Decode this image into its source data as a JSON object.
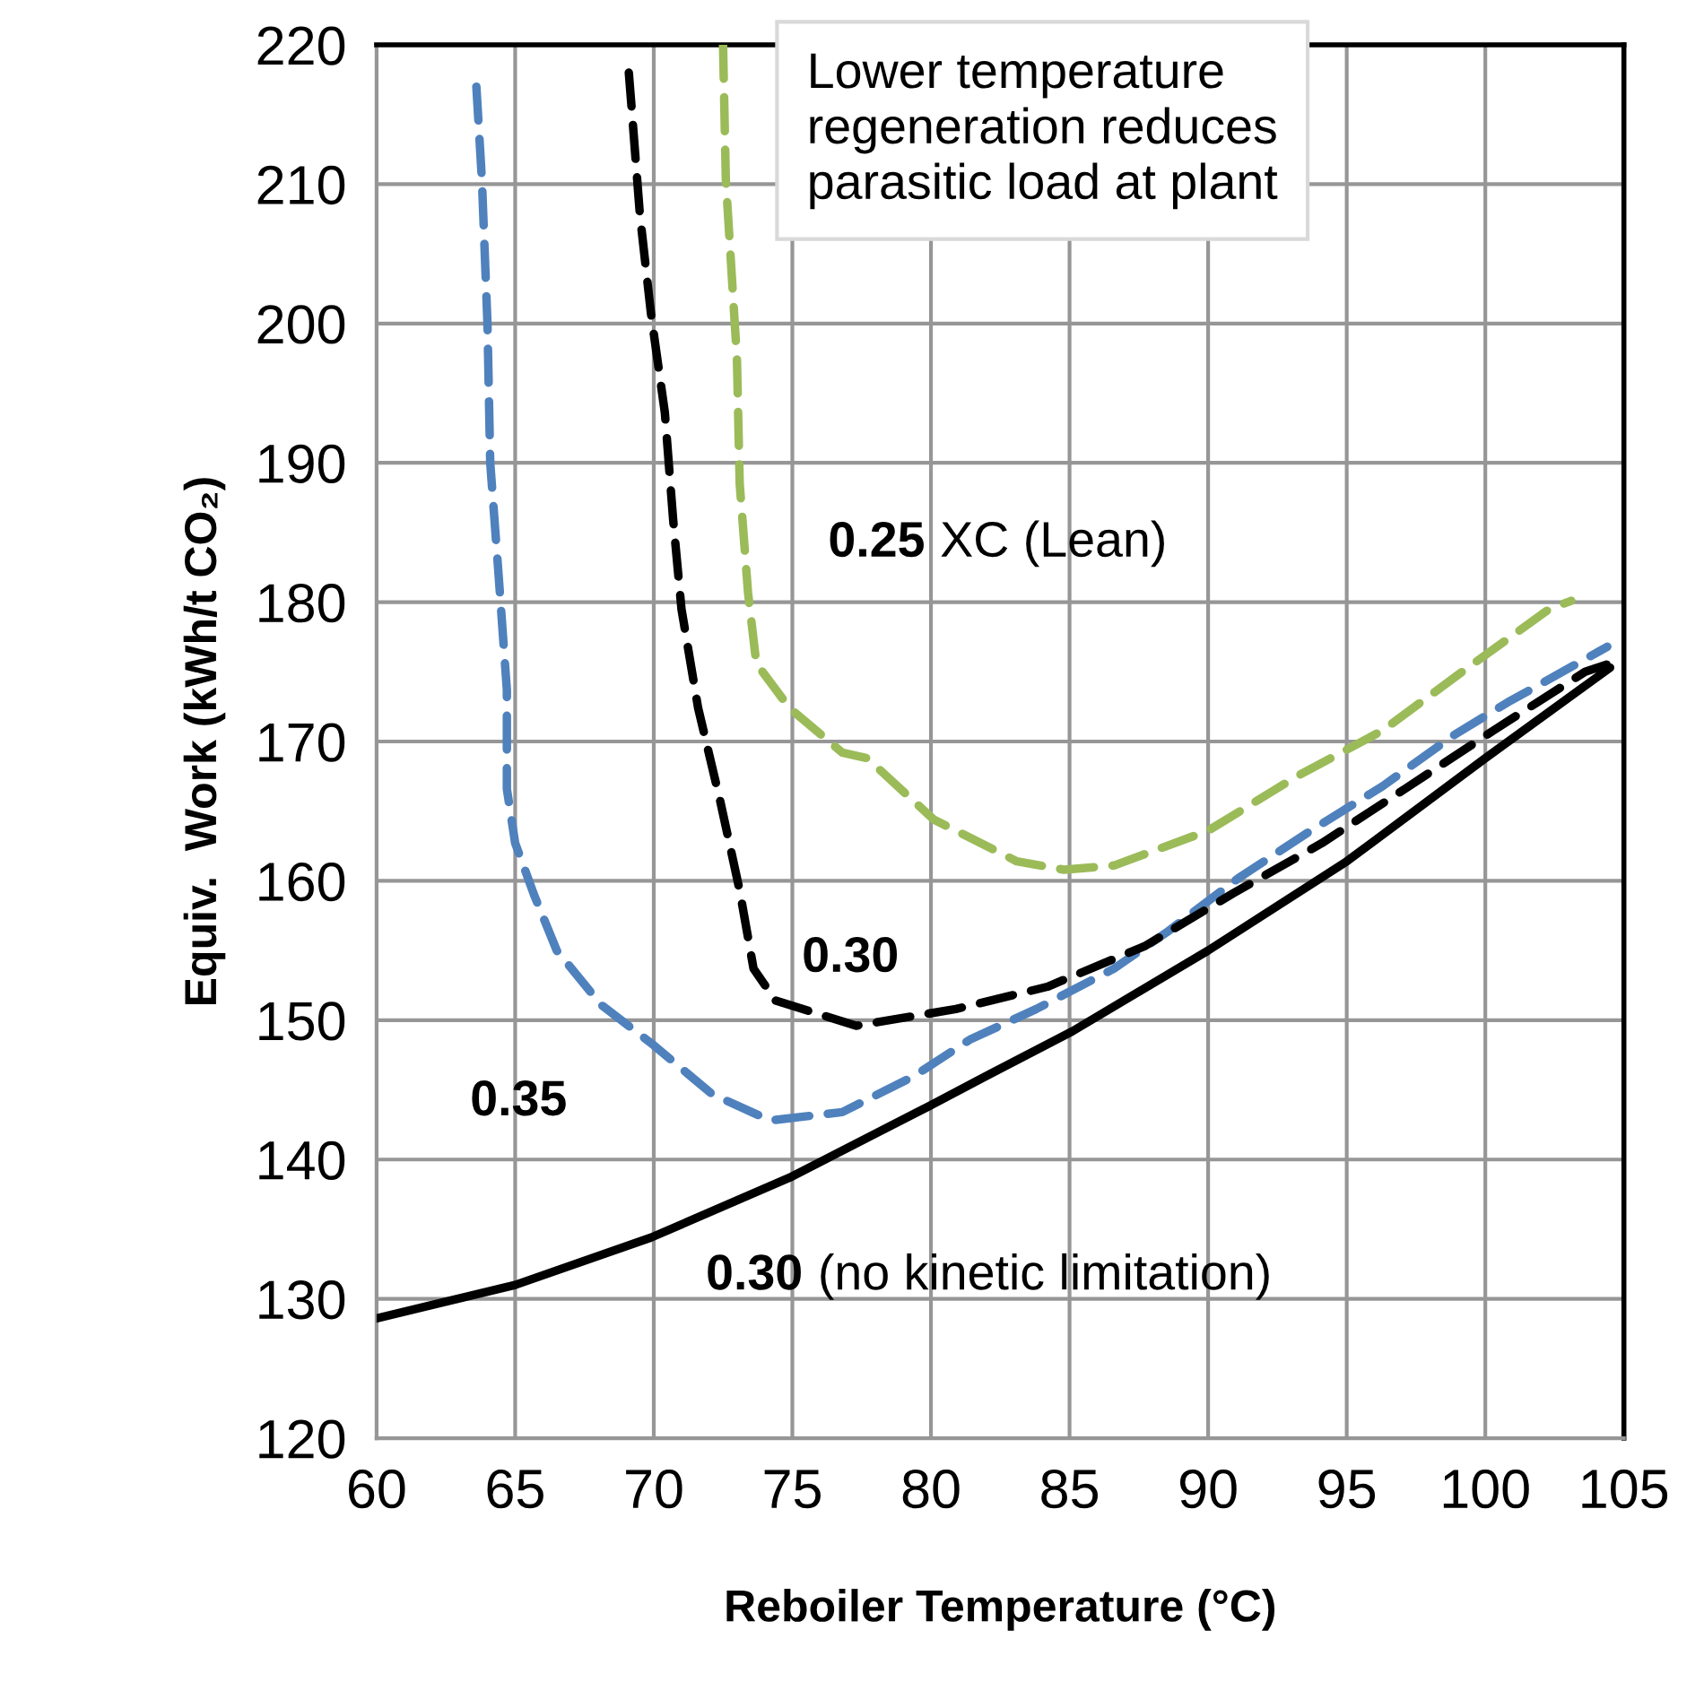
{
  "chart_data": {
    "type": "line",
    "xlabel": "Reboiler Temperature (°C)",
    "ylabel": "Equiv.  Work (kWh/t CO₂)",
    "xlim": [
      60,
      105
    ],
    "xticks": [
      60,
      65,
      70,
      75,
      80,
      85,
      90,
      95,
      100,
      105
    ],
    "ylim": [
      120,
      220
    ],
    "yticks": [
      120,
      130,
      140,
      150,
      160,
      170,
      180,
      190,
      200,
      210,
      220
    ],
    "grid": true,
    "marker": "none",
    "series": [
      {
        "name": "0.35",
        "color": "#4f81bd",
        "line_style": "dashed",
        "x": [
          63.6,
          63.8,
          64.0,
          64.1,
          64.4,
          64.7,
          64.7,
          65.0,
          65.7,
          66.5,
          68.1,
          70.0,
          72.1,
          74.2,
          76.8,
          79.4,
          81.4,
          83.8,
          86.6,
          88.5,
          91.1,
          93.7,
          96.3,
          98.9,
          100.8,
          104.4
        ],
        "values": [
          217,
          210.3,
          200,
          190,
          182,
          173.7,
          166.6,
          162.7,
          158.9,
          155,
          151.1,
          148.2,
          144.7,
          142.8,
          143.4,
          146,
          148.6,
          150.8,
          153.7,
          156.3,
          160.2,
          163.6,
          166.8,
          170.5,
          172.8,
          176.8
        ]
      },
      {
        "name": "0.30",
        "color": "#000000",
        "line_style": "dashed",
        "x": [
          69.1,
          69.2,
          69.5,
          69.9,
          70.4,
          70.7,
          71.0,
          71.6,
          72.4,
          73.1,
          73.6,
          74.4,
          77.3,
          80.9,
          84.2,
          87.7,
          90.9,
          94.1,
          97.1,
          100.3,
          103.6,
          104.5
        ],
        "values": [
          218,
          215.5,
          207.8,
          200.7,
          193.6,
          185.9,
          179.5,
          172.4,
          165.7,
          159.3,
          153.7,
          151.4,
          149.6,
          150.8,
          152.4,
          155.3,
          159.1,
          162.7,
          166.6,
          170.8,
          175.0,
          175.6
        ]
      },
      {
        "name": "0.25 XC (Lean)",
        "color": "#9bbb59",
        "line_style": "dashed",
        "x": [
          72.5,
          72.6,
          72.8,
          73.0,
          73.1,
          73.4,
          73.7,
          74.9,
          76.8,
          77.7,
          80.1,
          83.1,
          84.8,
          86.6,
          90.0,
          93.2,
          96.3,
          99.3,
          102.3,
          103.1
        ],
        "values": [
          220,
          210.3,
          203.9,
          197.5,
          188.5,
          180.7,
          175.6,
          172.4,
          169.2,
          168.8,
          164.4,
          161.4,
          160.8,
          161.1,
          163.6,
          167.5,
          170.8,
          175.2,
          179.5,
          180.1
        ]
      },
      {
        "name": "0.30 (no kinetic limitation)",
        "color": "#000000",
        "line_style": "solid",
        "x": [
          60,
          65.0,
          69.9,
          74.9,
          79.9,
          82.0,
          85.1,
          90.0,
          95.0,
          100.0,
          104.5
        ],
        "values": [
          128.6,
          131.0,
          134.4,
          138.7,
          143.8,
          146.0,
          149.2,
          155.0,
          161.4,
          168.8,
          175.3
        ]
      }
    ],
    "annotations": [
      "Lower temperature\nregeneration reduces\nparasitic load at plant"
    ]
  }
}
